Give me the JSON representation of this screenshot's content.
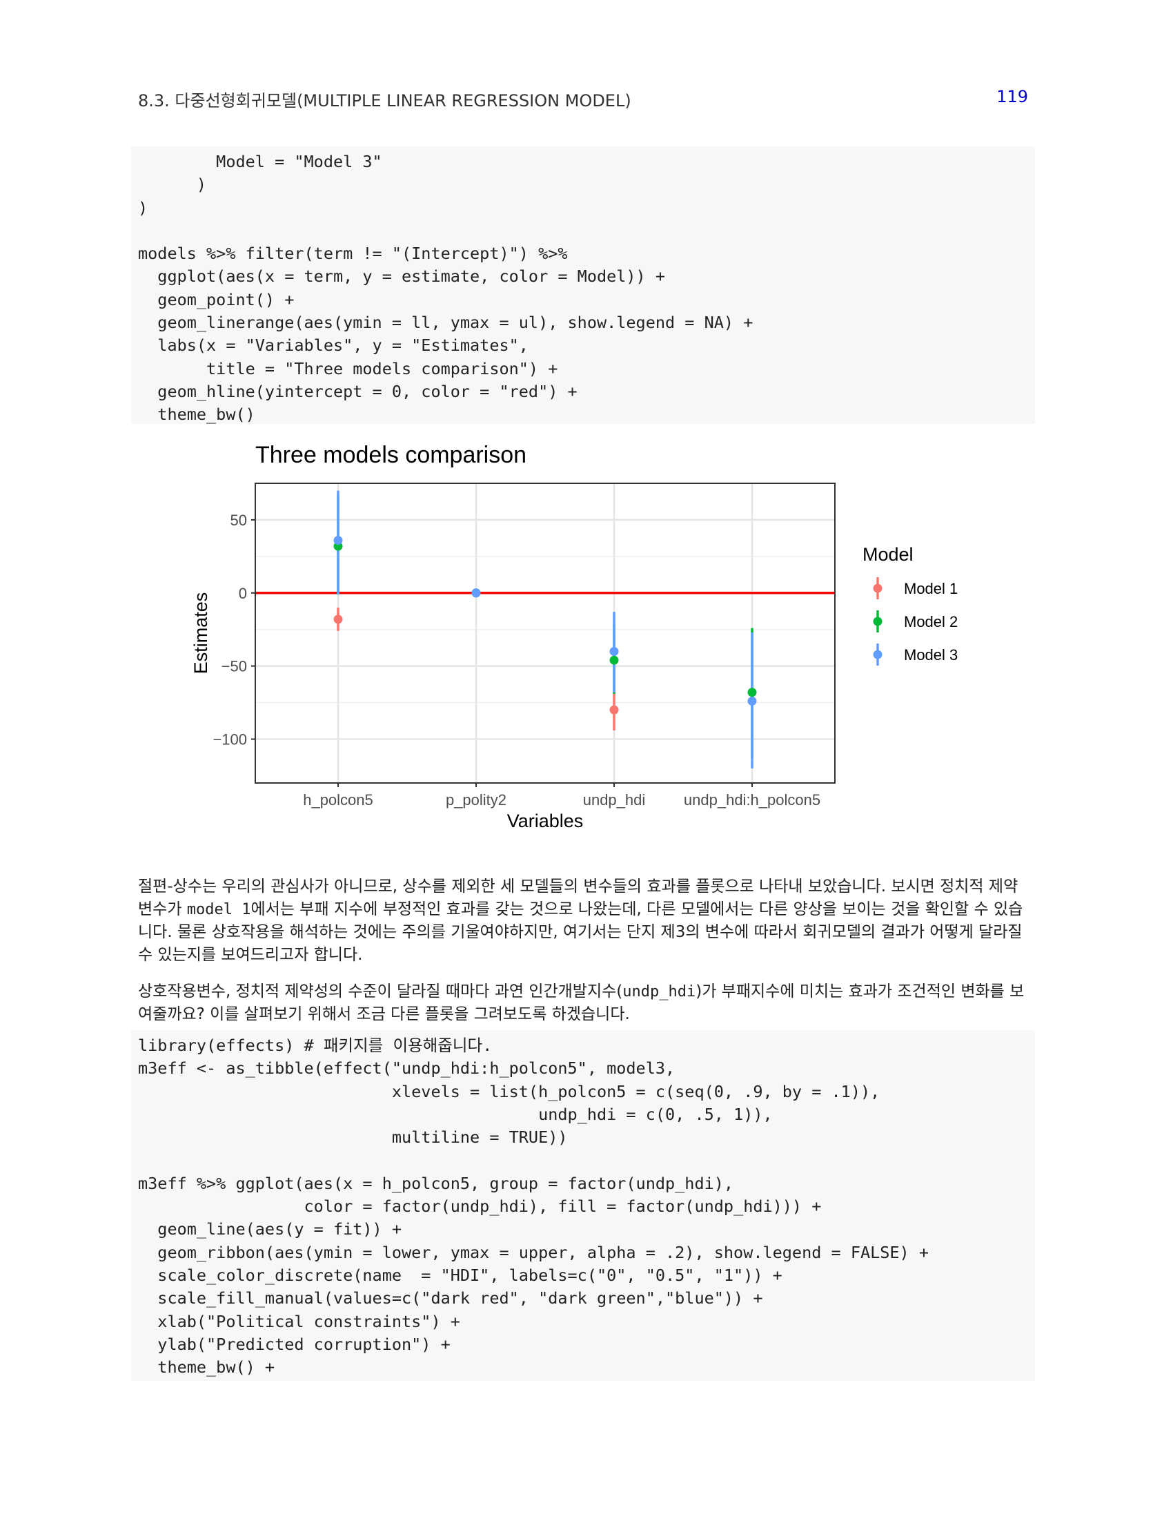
{
  "header": {
    "section": "8.3.  다중선형회귀모델(MULTIPLE LINEAR REGRESSION MODEL)",
    "page_number": "119"
  },
  "code1": {
    "lines": [
      "        Model = \"Model 3\"",
      "      )",
      ")",
      "",
      "models %>% filter(term != \"(Intercept)\") %>%",
      "  ggplot(aes(x = term, y = estimate, color = Model)) +",
      "  geom_point() +",
      "  geom_linerange(aes(ymin = ll, ymax = ul), show.legend = NA) +",
      "  labs(x = \"Variables\", y = \"Estimates\",",
      "       title = \"Three models comparison\") +",
      "  geom_hline(yintercept = 0, color = \"red\") +",
      "  theme_bw()"
    ]
  },
  "paragraphs": {
    "p1_a": "절편-상수는 우리의 관심사가 아니므로, 상수를 제외한 세 모델들의 변수들의 효과를 플롯으로 나타내 보았습니다. 보시면 정치적 제약 변수가 ",
    "p1_code": "model 1",
    "p1_b": "에서는 부패 지수에 부정적인 효과를 갖는 것으로 나왔는데, 다른 모델에서는 다른 양상을 보이는 것을 확인할 수 있습니다. 물론 상호작용을 해석하는 것에는 주의를 기울여야하지만, 여기서는 단지 제3의 변수에 따라서 회귀모델의 결과가 어떻게 달라질 수 있는지를 보여드리고자 합니다.",
    "p2_a": "상호작용변수, 정치적 제약성의 수준이 달라질 때마다 과연 인간개발지수(",
    "p2_code": "undp_hdi",
    "p2_b": ")가 부패지수에 미치는 효과가 조건적인 변화를 보여줄까요? 이를 살펴보기 위해서 조금 다른 플롯을 그려보도록 하겠습니다."
  },
  "code2": {
    "lines": [
      "library(effects) # 패키지를 이용해줍니다.",
      "m3eff <- as_tibble(effect(\"undp_hdi:h_polcon5\", model3,",
      "                          xlevels = list(h_polcon5 = c(seq(0, .9, by = .1)),",
      "                                         undp_hdi = c(0, .5, 1)),",
      "                          multiline = TRUE))",
      "",
      "m3eff %>% ggplot(aes(x = h_polcon5, group = factor(undp_hdi),",
      "                 color = factor(undp_hdi), fill = factor(undp_hdi))) +",
      "  geom_line(aes(y = fit)) +",
      "  geom_ribbon(aes(ymin = lower, ymax = upper, alpha = .2), show.legend = FALSE) +",
      "  scale_color_discrete(name  = \"HDI\", labels=c(\"0\", \"0.5\", \"1\")) +",
      "  scale_fill_manual(values=c(\"dark red\", \"dark green\",\"blue\")) +",
      "  xlab(\"Political constraints\") +",
      "  ylab(\"Predicted corruption\") +",
      "  theme_bw() +"
    ]
  },
  "chart_data": {
    "type": "scatter",
    "title": "Three models comparison",
    "xlabel": "Variables",
    "ylabel": "Estimates",
    "categories": [
      "h_polcon5",
      "p_polity2",
      "undp_hdi",
      "undp_hdi:h_polcon5"
    ],
    "ylim": [
      -130,
      75
    ],
    "yticks": [
      50,
      0,
      -50,
      -100
    ],
    "ytick_labels": [
      "50",
      "0",
      "−50",
      "−100"
    ],
    "hline": {
      "y": 0,
      "color": "#ff0000"
    },
    "legend": {
      "title": "Model",
      "position": "right"
    },
    "series": [
      {
        "name": "Model 1",
        "color": "#F8766D",
        "estimates": [
          -18,
          0,
          -80,
          null
        ],
        "lower": [
          -26,
          -0.3,
          -94,
          null
        ],
        "upper": [
          -10,
          0.3,
          -66,
          null
        ]
      },
      {
        "name": "Model 2",
        "color": "#00BA38",
        "estimates": [
          32,
          0,
          -46,
          -68
        ],
        "lower": [
          -1,
          -0.3,
          -69,
          -113
        ],
        "upper": [
          67,
          0.3,
          -21,
          -24
        ]
      },
      {
        "name": "Model 3",
        "color": "#619CFF",
        "estimates": [
          36,
          0,
          -40,
          -74
        ],
        "lower": [
          -1,
          -0.3,
          -68,
          -120
        ],
        "upper": [
          70,
          0.3,
          -13,
          -27
        ]
      }
    ],
    "grid": true
  }
}
